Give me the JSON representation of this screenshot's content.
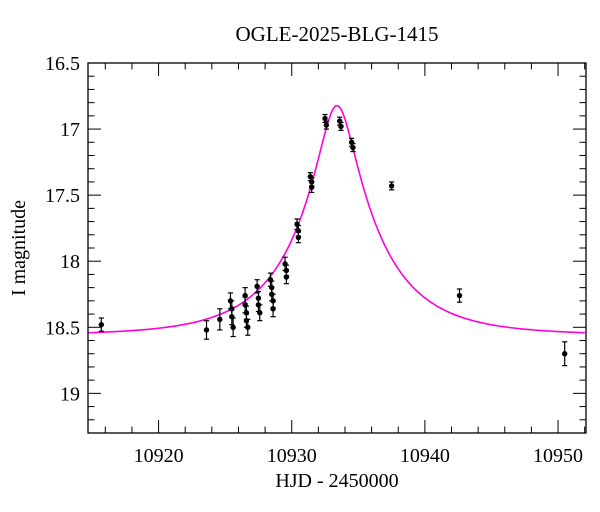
{
  "chart_data": {
    "type": "scatter",
    "title": "OGLE-2025-BLG-1415",
    "xlabel": "HJD - 2450000",
    "ylabel": "I magnitude",
    "xlim": [
      10914.7,
      10952.1
    ],
    "ylim": [
      16.5,
      19.3
    ],
    "y_axis_inverted_note": "magnitude axis: brighter (smaller value) at top",
    "grid": false,
    "background_color": "#ffffff",
    "axis_color": "#000000",
    "point_color": "#000000",
    "x_major_ticks": {
      "values": [
        10920,
        10930,
        10940,
        10950
      ],
      "labels": [
        "10920",
        "10930",
        "10940",
        "10950"
      ]
    },
    "x_minor_step": 2,
    "y_major_ticks": {
      "values": [
        16.5,
        17,
        17.5,
        18,
        18.5,
        19
      ],
      "labels": [
        "16.5",
        "17",
        "17.5",
        "18",
        "18.5",
        "19"
      ]
    },
    "y_minor_step": 0.1,
    "model_curve": {
      "name": "paczynski-microlensing-fit",
      "color": "#ff00dd",
      "t0": 10933.4,
      "tE": 6.3,
      "u0": 0.205,
      "I0": 18.56
    },
    "points": [
      {
        "x": 10915.7,
        "y": 18.48,
        "e": 0.05
      },
      {
        "x": 10923.6,
        "y": 18.52,
        "e": 0.07
      },
      {
        "x": 10924.6,
        "y": 18.44,
        "e": 0.08
      },
      {
        "x": 10925.4,
        "y": 18.3,
        "e": 0.06
      },
      {
        "x": 10925.5,
        "y": 18.36,
        "e": 0.06
      },
      {
        "x": 10925.5,
        "y": 18.42,
        "e": 0.06
      },
      {
        "x": 10925.6,
        "y": 18.5,
        "e": 0.07
      },
      {
        "x": 10926.5,
        "y": 18.26,
        "e": 0.06
      },
      {
        "x": 10926.5,
        "y": 18.33,
        "e": 0.06
      },
      {
        "x": 10926.6,
        "y": 18.39,
        "e": 0.05
      },
      {
        "x": 10926.6,
        "y": 18.45,
        "e": 0.05
      },
      {
        "x": 10926.7,
        "y": 18.5,
        "e": 0.06
      },
      {
        "x": 10927.4,
        "y": 18.19,
        "e": 0.05
      },
      {
        "x": 10927.5,
        "y": 18.28,
        "e": 0.05
      },
      {
        "x": 10927.5,
        "y": 18.33,
        "e": 0.05
      },
      {
        "x": 10927.6,
        "y": 18.39,
        "e": 0.06
      },
      {
        "x": 10928.4,
        "y": 18.14,
        "e": 0.05
      },
      {
        "x": 10928.5,
        "y": 18.2,
        "e": 0.05
      },
      {
        "x": 10928.5,
        "y": 18.25,
        "e": 0.05
      },
      {
        "x": 10928.6,
        "y": 18.3,
        "e": 0.05
      },
      {
        "x": 10928.6,
        "y": 18.36,
        "e": 0.06
      },
      {
        "x": 10929.5,
        "y": 18.02,
        "e": 0.05
      },
      {
        "x": 10929.6,
        "y": 18.07,
        "e": 0.04
      },
      {
        "x": 10929.6,
        "y": 18.12,
        "e": 0.05
      },
      {
        "x": 10930.4,
        "y": 17.72,
        "e": 0.04
      },
      {
        "x": 10930.5,
        "y": 17.77,
        "e": 0.04
      },
      {
        "x": 10930.5,
        "y": 17.82,
        "e": 0.04
      },
      {
        "x": 10931.4,
        "y": 17.36,
        "e": 0.03
      },
      {
        "x": 10931.5,
        "y": 17.4,
        "e": 0.03
      },
      {
        "x": 10931.5,
        "y": 17.44,
        "e": 0.04
      },
      {
        "x": 10932.5,
        "y": 16.92,
        "e": 0.03
      },
      {
        "x": 10932.6,
        "y": 16.97,
        "e": 0.03
      },
      {
        "x": 10933.6,
        "y": 16.94,
        "e": 0.03
      },
      {
        "x": 10933.7,
        "y": 16.98,
        "e": 0.03
      },
      {
        "x": 10934.5,
        "y": 17.1,
        "e": 0.03
      },
      {
        "x": 10934.6,
        "y": 17.14,
        "e": 0.03
      },
      {
        "x": 10937.5,
        "y": 17.43,
        "e": 0.03
      },
      {
        "x": 10942.6,
        "y": 18.26,
        "e": 0.05
      },
      {
        "x": 10950.5,
        "y": 18.7,
        "e": 0.09
      }
    ]
  }
}
